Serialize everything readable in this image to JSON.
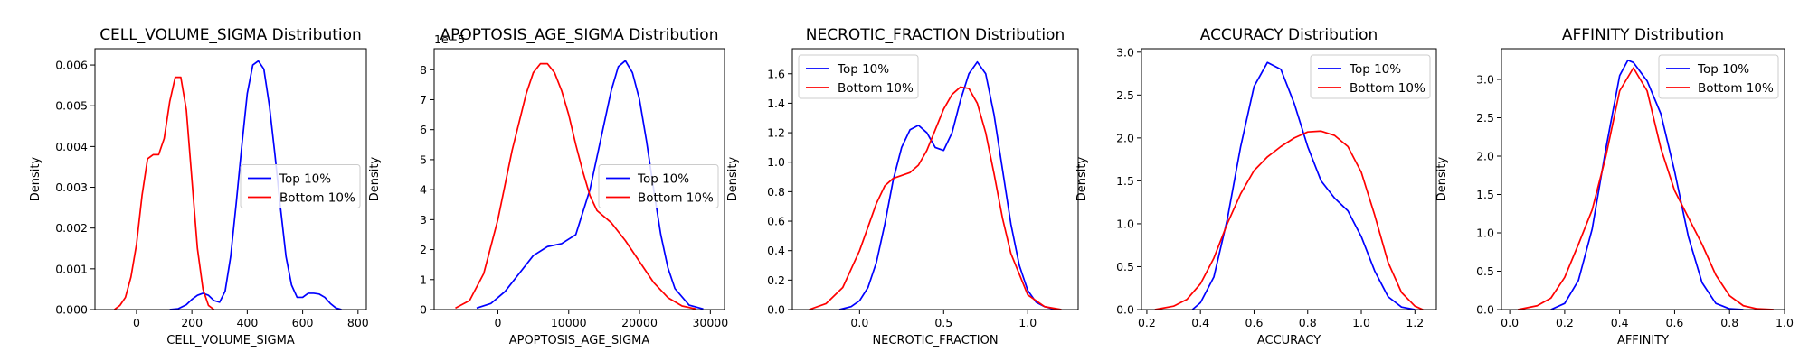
{
  "colors": {
    "top": "#0000ff",
    "bottom": "#ff0000"
  },
  "chart_data": [
    {
      "type": "line",
      "title": "CELL_VOLUME_SIGMA Distribution",
      "xlabel": "CELL_VOLUME_SIGMA",
      "ylabel": "Density",
      "xlim": [
        -150,
        830
      ],
      "ylim": [
        0,
        0.0064
      ],
      "xticks": [
        0,
        200,
        400,
        600,
        800
      ],
      "xtick_labels": [
        "0",
        "200",
        "400",
        "600",
        "800"
      ],
      "yticks": [
        0,
        0.001,
        0.002,
        0.003,
        0.004,
        0.005,
        0.006
      ],
      "ytick_labels": [
        "0.000",
        "0.001",
        "0.002",
        "0.003",
        "0.004",
        "0.005",
        "0.006"
      ],
      "offset_label": "",
      "legend": {
        "loc": "center-right",
        "entries": [
          "Top 10%",
          "Bottom 10%"
        ]
      },
      "series": [
        {
          "name": "Top 10%",
          "color": "#0000ff",
          "x": [
            120,
            150,
            180,
            200,
            220,
            240,
            260,
            280,
            300,
            320,
            340,
            360,
            380,
            400,
            420,
            440,
            460,
            480,
            500,
            520,
            540,
            560,
            580,
            600,
            620,
            640,
            660,
            680,
            700,
            720,
            740
          ],
          "y": [
            0,
            2e-05,
            0.00012,
            0.00025,
            0.00035,
            0.0004,
            0.00035,
            0.00022,
            0.00018,
            0.00045,
            0.0013,
            0.0026,
            0.004,
            0.0053,
            0.006,
            0.0061,
            0.0059,
            0.005,
            0.0038,
            0.0025,
            0.0013,
            0.0006,
            0.0003,
            0.0003,
            0.0004,
            0.0004,
            0.00038,
            0.0003,
            0.00015,
            4e-05,
            0
          ]
        },
        {
          "name": "Bottom 10%",
          "color": "#ff0000",
          "x": [
            -80,
            -60,
            -40,
            -20,
            0,
            20,
            40,
            60,
            80,
            100,
            120,
            140,
            160,
            180,
            200,
            220,
            240,
            260,
            280
          ],
          "y": [
            0,
            0.0001,
            0.0003,
            0.0008,
            0.0016,
            0.0028,
            0.0037,
            0.0038,
            0.0038,
            0.0042,
            0.0051,
            0.0057,
            0.0057,
            0.0049,
            0.0032,
            0.0015,
            0.0005,
            0.0001,
            0
          ]
        }
      ]
    },
    {
      "type": "line",
      "title": "APOPTOSIS_AGE_SIGMA Distribution",
      "xlabel": "APOPTOSIS_AGE_SIGMA",
      "ylabel": "Density",
      "xlim": [
        -9000,
        32000
      ],
      "ylim": [
        0,
        8.7
      ],
      "xticks": [
        0,
        10000,
        20000,
        30000
      ],
      "xtick_labels": [
        "0",
        "10000",
        "20000",
        "30000"
      ],
      "yticks": [
        0,
        1,
        2,
        3,
        4,
        5,
        6,
        7,
        8
      ],
      "ytick_labels": [
        "0",
        "1",
        "2",
        "3",
        "4",
        "5",
        "6",
        "7",
        "8"
      ],
      "offset_label": "1e−5",
      "legend": {
        "loc": "center-right",
        "entries": [
          "Top 10%",
          "Bottom 10%"
        ]
      },
      "series": [
        {
          "name": "Top 10%",
          "color": "#0000ff",
          "x": [
            -3000,
            -1000,
            1000,
            3000,
            5000,
            7000,
            9000,
            11000,
            13000,
            15000,
            16000,
            17000,
            18000,
            19000,
            20000,
            21000,
            22000,
            23000,
            24000,
            25000,
            27000,
            29000
          ],
          "y": [
            0.05,
            0.2,
            0.6,
            1.2,
            1.8,
            2.1,
            2.2,
            2.5,
            4.0,
            6.2,
            7.3,
            8.1,
            8.3,
            7.9,
            7.0,
            5.6,
            4.0,
            2.5,
            1.4,
            0.7,
            0.15,
            0.02
          ]
        },
        {
          "name": "Bottom 10%",
          "color": "#ff0000",
          "x": [
            -6000,
            -4000,
            -2000,
            0,
            2000,
            4000,
            5000,
            6000,
            7000,
            8000,
            9000,
            10000,
            11000,
            12000,
            13000,
            14000,
            16000,
            18000,
            20000,
            22000,
            24000,
            26000,
            28000
          ],
          "y": [
            0.05,
            0.3,
            1.2,
            3.0,
            5.3,
            7.2,
            7.9,
            8.2,
            8.2,
            7.9,
            7.3,
            6.5,
            5.5,
            4.6,
            3.8,
            3.3,
            2.9,
            2.3,
            1.6,
            0.9,
            0.4,
            0.12,
            0.02
          ]
        }
      ]
    },
    {
      "type": "line",
      "title": "NECROTIC_FRACTION Distribution",
      "xlabel": "NECROTIC_FRACTION",
      "ylabel": "Density",
      "xlim": [
        -0.4,
        1.3
      ],
      "ylim": [
        0,
        1.77
      ],
      "xticks": [
        0.0,
        0.5,
        1.0
      ],
      "xtick_labels": [
        "0.0",
        "0.5",
        "1.0"
      ],
      "yticks": [
        0,
        0.2,
        0.4,
        0.6,
        0.8,
        1.0,
        1.2,
        1.4,
        1.6
      ],
      "ytick_labels": [
        "0.0",
        "0.2",
        "0.4",
        "0.6",
        "0.8",
        "1.0",
        "1.2",
        "1.4",
        "1.6"
      ],
      "offset_label": "",
      "legend": {
        "loc": "top-left",
        "entries": [
          "Top 10%",
          "Bottom 10%"
        ]
      },
      "series": [
        {
          "name": "Top 10%",
          "color": "#0000ff",
          "x": [
            -0.12,
            -0.05,
            0.0,
            0.05,
            0.1,
            0.15,
            0.2,
            0.25,
            0.3,
            0.35,
            0.4,
            0.45,
            0.5,
            0.55,
            0.6,
            0.65,
            0.7,
            0.75,
            0.8,
            0.85,
            0.9,
            0.95,
            1.0,
            1.05,
            1.1,
            1.15,
            1.2
          ],
          "y": [
            0,
            0.02,
            0.06,
            0.15,
            0.32,
            0.58,
            0.88,
            1.1,
            1.22,
            1.25,
            1.2,
            1.1,
            1.08,
            1.2,
            1.42,
            1.6,
            1.68,
            1.6,
            1.32,
            0.95,
            0.58,
            0.3,
            0.13,
            0.05,
            0.02,
            0.005,
            0
          ]
        },
        {
          "name": "Bottom 10%",
          "color": "#ff0000",
          "x": [
            -0.3,
            -0.2,
            -0.1,
            0.0,
            0.05,
            0.1,
            0.15,
            0.2,
            0.25,
            0.3,
            0.35,
            0.4,
            0.45,
            0.5,
            0.55,
            0.6,
            0.65,
            0.7,
            0.75,
            0.8,
            0.85,
            0.9,
            1.0,
            1.1,
            1.2
          ],
          "y": [
            0,
            0.04,
            0.15,
            0.4,
            0.56,
            0.72,
            0.84,
            0.89,
            0.91,
            0.93,
            0.98,
            1.08,
            1.22,
            1.36,
            1.46,
            1.51,
            1.5,
            1.4,
            1.2,
            0.92,
            0.62,
            0.38,
            0.1,
            0.02,
            0
          ]
        }
      ]
    },
    {
      "type": "line",
      "title": "ACCURACY Distribution",
      "xlabel": "ACCURACY",
      "ylabel": "Density",
      "xlim": [
        0.18,
        1.28
      ],
      "ylim": [
        0,
        3.04
      ],
      "xticks": [
        0.2,
        0.4,
        0.6,
        0.8,
        1.0,
        1.2
      ],
      "xtick_labels": [
        "0.2",
        "0.4",
        "0.6",
        "0.8",
        "1.0",
        "1.2"
      ],
      "yticks": [
        0,
        0.5,
        1.0,
        1.5,
        2.0,
        2.5,
        3.0
      ],
      "ytick_labels": [
        "0.0",
        "0.5",
        "1.0",
        "1.5",
        "2.0",
        "2.5",
        "3.0"
      ],
      "offset_label": "",
      "legend": {
        "loc": "top-right",
        "entries": [
          "Top 10%",
          "Bottom 10%"
        ]
      },
      "series": [
        {
          "name": "Top 10%",
          "color": "#0000ff",
          "x": [
            0.37,
            0.4,
            0.45,
            0.5,
            0.55,
            0.6,
            0.65,
            0.7,
            0.75,
            0.8,
            0.85,
            0.9,
            0.95,
            1.0,
            1.05,
            1.1,
            1.15,
            1.2
          ],
          "y": [
            0,
            0.08,
            0.38,
            1.05,
            1.9,
            2.6,
            2.88,
            2.8,
            2.4,
            1.9,
            1.5,
            1.3,
            1.15,
            0.85,
            0.45,
            0.15,
            0.03,
            0
          ]
        },
        {
          "name": "Bottom 10%",
          "color": "#ff0000",
          "x": [
            0.23,
            0.3,
            0.35,
            0.4,
            0.45,
            0.5,
            0.55,
            0.6,
            0.65,
            0.7,
            0.75,
            0.8,
            0.85,
            0.9,
            0.95,
            1.0,
            1.05,
            1.1,
            1.15,
            1.2,
            1.23
          ],
          "y": [
            0,
            0.04,
            0.12,
            0.3,
            0.6,
            1.0,
            1.35,
            1.62,
            1.78,
            1.9,
            2.0,
            2.07,
            2.08,
            2.03,
            1.9,
            1.6,
            1.1,
            0.55,
            0.2,
            0.04,
            0
          ]
        }
      ]
    },
    {
      "type": "line",
      "title": "AFFINITY Distribution",
      "xlabel": "AFFINITY",
      "ylabel": "Density",
      "xlim": [
        -0.03,
        1.0
      ],
      "ylim": [
        0,
        3.4
      ],
      "xticks": [
        0.0,
        0.2,
        0.4,
        0.6,
        0.8,
        1.0
      ],
      "xtick_labels": [
        "0.0",
        "0.2",
        "0.4",
        "0.6",
        "0.8",
        "1.0"
      ],
      "yticks": [
        0,
        0.5,
        1.0,
        1.5,
        2.0,
        2.5,
        3.0
      ],
      "ytick_labels": [
        "0.0",
        "0.5",
        "1.0",
        "1.5",
        "2.0",
        "2.5",
        "3.0"
      ],
      "offset_label": "",
      "legend": {
        "loc": "top-right",
        "entries": [
          "Top 10%",
          "Bottom 10%"
        ]
      },
      "series": [
        {
          "name": "Top 10%",
          "color": "#0000ff",
          "x": [
            0.15,
            0.2,
            0.25,
            0.3,
            0.35,
            0.4,
            0.43,
            0.45,
            0.5,
            0.55,
            0.6,
            0.65,
            0.7,
            0.75,
            0.8,
            0.85
          ],
          "y": [
            0,
            0.08,
            0.38,
            1.05,
            2.1,
            3.05,
            3.25,
            3.22,
            2.98,
            2.55,
            1.8,
            0.95,
            0.35,
            0.08,
            0.01,
            0
          ]
        },
        {
          "name": "Bottom 10%",
          "color": "#ff0000",
          "x": [
            0.03,
            0.1,
            0.15,
            0.2,
            0.25,
            0.3,
            0.35,
            0.4,
            0.45,
            0.5,
            0.55,
            0.6,
            0.65,
            0.7,
            0.75,
            0.8,
            0.85,
            0.9,
            0.96
          ],
          "y": [
            0,
            0.05,
            0.15,
            0.42,
            0.85,
            1.3,
            2.0,
            2.85,
            3.15,
            2.85,
            2.1,
            1.55,
            1.2,
            0.85,
            0.45,
            0.18,
            0.05,
            0.01,
            0
          ]
        }
      ]
    }
  ]
}
